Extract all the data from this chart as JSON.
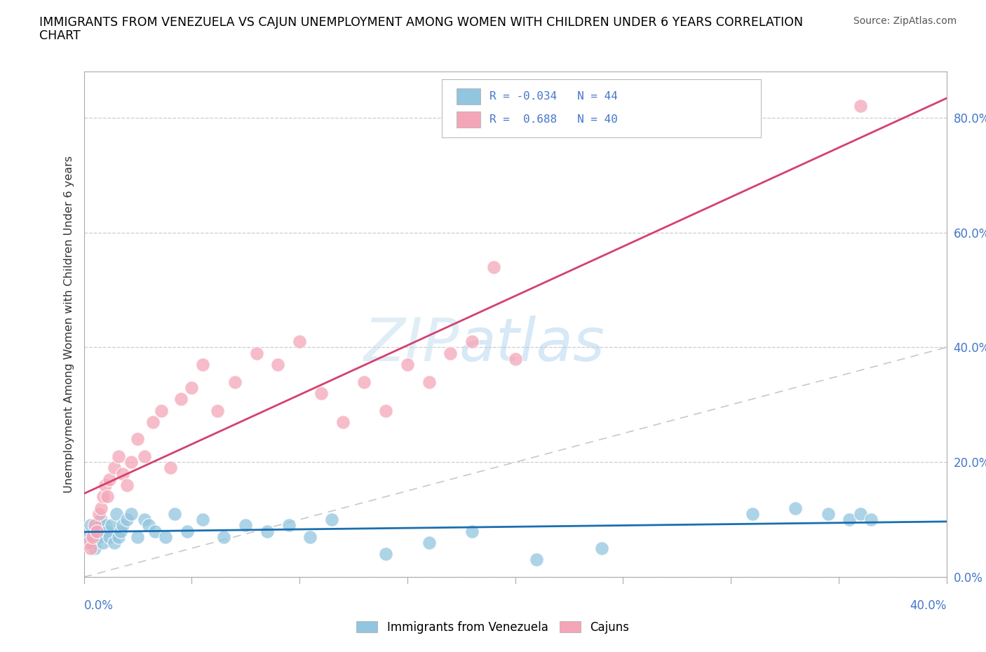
{
  "title_line1": "IMMIGRANTS FROM VENEZUELA VS CAJUN UNEMPLOYMENT AMONG WOMEN WITH CHILDREN UNDER 6 YEARS CORRELATION",
  "title_line2": "CHART",
  "source": "Source: ZipAtlas.com",
  "ylabel": "Unemployment Among Women with Children Under 6 years",
  "ytick_labels": [
    "0.0%",
    "20.0%",
    "40.0%",
    "60.0%",
    "80.0%"
  ],
  "ytick_values": [
    0.0,
    0.2,
    0.4,
    0.6,
    0.8
  ],
  "xtick_left": "0.0%",
  "xtick_right": "40.0%",
  "xlim": [
    0.0,
    0.4
  ],
  "ylim": [
    0.0,
    0.88
  ],
  "legend_label1": "Immigrants from Venezuela",
  "legend_label2": "Cajuns",
  "R1": "-0.034",
  "N1": "44",
  "R2": "0.688",
  "N2": "40",
  "color_blue": "#92c5de",
  "color_pink": "#f4a6b8",
  "color_blue_line": "#1a6faf",
  "color_pink_line": "#d44070",
  "color_diagonal": "#bbbbbb",
  "watermark_zip_color": "#c5dff0",
  "watermark_atlas_color": "#a8ccee",
  "blue_x": [
    0.002,
    0.003,
    0.004,
    0.005,
    0.006,
    0.007,
    0.008,
    0.009,
    0.01,
    0.011,
    0.012,
    0.013,
    0.014,
    0.015,
    0.016,
    0.017,
    0.018,
    0.02,
    0.022,
    0.025,
    0.028,
    0.03,
    0.033,
    0.038,
    0.042,
    0.048,
    0.055,
    0.065,
    0.075,
    0.085,
    0.095,
    0.105,
    0.115,
    0.14,
    0.16,
    0.18,
    0.21,
    0.24,
    0.31,
    0.33,
    0.345,
    0.355,
    0.36,
    0.365
  ],
  "blue_y": [
    0.07,
    0.09,
    0.06,
    0.05,
    0.08,
    0.07,
    0.1,
    0.06,
    0.09,
    0.08,
    0.07,
    0.09,
    0.06,
    0.11,
    0.07,
    0.08,
    0.09,
    0.1,
    0.11,
    0.07,
    0.1,
    0.09,
    0.08,
    0.07,
    0.11,
    0.08,
    0.1,
    0.07,
    0.09,
    0.08,
    0.09,
    0.07,
    0.1,
    0.04,
    0.06,
    0.08,
    0.03,
    0.05,
    0.11,
    0.12,
    0.11,
    0.1,
    0.11,
    0.1
  ],
  "pink_x": [
    0.002,
    0.003,
    0.004,
    0.005,
    0.006,
    0.007,
    0.008,
    0.009,
    0.01,
    0.011,
    0.012,
    0.014,
    0.016,
    0.018,
    0.02,
    0.022,
    0.025,
    0.028,
    0.032,
    0.036,
    0.04,
    0.045,
    0.05,
    0.055,
    0.062,
    0.07,
    0.08,
    0.09,
    0.1,
    0.11,
    0.12,
    0.13,
    0.14,
    0.15,
    0.16,
    0.17,
    0.18,
    0.19,
    0.2,
    0.36
  ],
  "pink_y": [
    0.06,
    0.05,
    0.07,
    0.09,
    0.08,
    0.11,
    0.12,
    0.14,
    0.16,
    0.14,
    0.17,
    0.19,
    0.21,
    0.18,
    0.16,
    0.2,
    0.24,
    0.21,
    0.27,
    0.29,
    0.19,
    0.31,
    0.33,
    0.37,
    0.29,
    0.34,
    0.39,
    0.37,
    0.41,
    0.32,
    0.27,
    0.34,
    0.29,
    0.37,
    0.34,
    0.39,
    0.41,
    0.54,
    0.38,
    0.82
  ]
}
